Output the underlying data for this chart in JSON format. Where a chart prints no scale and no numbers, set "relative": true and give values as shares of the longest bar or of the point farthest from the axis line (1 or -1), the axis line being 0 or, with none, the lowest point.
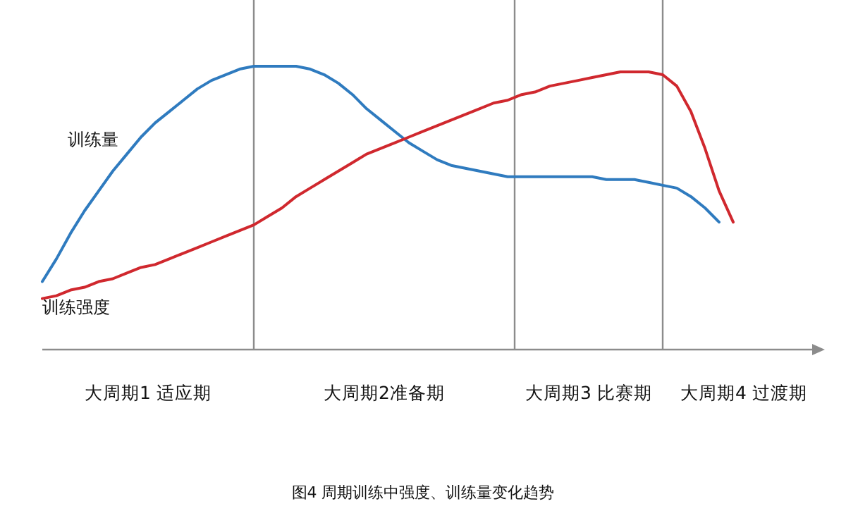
{
  "chart_data": {
    "type": "line",
    "relative": true,
    "title": "图4 周期训练中强度、训练量变化趋势",
    "categories": [
      null,
      null,
      null,
      null,
      null,
      null,
      null,
      null,
      null,
      null,
      null,
      null,
      null,
      null,
      null,
      null,
      null,
      null,
      null,
      null,
      null,
      null,
      null,
      null,
      null,
      null,
      null,
      null,
      null,
      null,
      null,
      null,
      null,
      null,
      null,
      null,
      null,
      null,
      null,
      null,
      null,
      null,
      null,
      null,
      null,
      null,
      null,
      null,
      null,
      null
    ],
    "series": [
      {
        "name": "训练量",
        "color": "#2f7bbf",
        "values": [
          0.24,
          0.32,
          0.41,
          0.49,
          0.56,
          0.63,
          0.69,
          0.75,
          0.8,
          0.84,
          0.88,
          0.92,
          0.95,
          0.97,
          0.99,
          1,
          1,
          1,
          1,
          0.99,
          0.97,
          0.94,
          0.9,
          0.85,
          0.81,
          0.77,
          0.73,
          0.7,
          0.67,
          0.65,
          0.64,
          0.63,
          0.62,
          0.61,
          0.61,
          0.61,
          0.61,
          0.61,
          0.61,
          0.61,
          0.6,
          0.6,
          0.6,
          0.59,
          0.58,
          0.57,
          0.54,
          0.5,
          0.45,
          null
        ]
      },
      {
        "name": "训练强度",
        "color": "#d0282e",
        "values": [
          0.18,
          0.19,
          0.21,
          0.22,
          0.24,
          0.25,
          0.27,
          0.29,
          0.3,
          0.32,
          0.34,
          0.36,
          0.38,
          0.4,
          0.42,
          0.44,
          0.47,
          0.5,
          0.54,
          0.57,
          0.6,
          0.63,
          0.66,
          0.69,
          0.71,
          0.73,
          0.75,
          0.77,
          0.79,
          0.81,
          0.83,
          0.85,
          0.87,
          0.88,
          0.9,
          0.91,
          0.93,
          0.94,
          0.95,
          0.96,
          0.97,
          0.98,
          0.98,
          0.98,
          0.97,
          0.93,
          0.84,
          0.71,
          0.56,
          0.45
        ]
      }
    ],
    "annotations": [
      "大周期1 适应期",
      "大周期2准备期",
      "大周期3 比赛期",
      "大周期4 过渡期"
    ]
  }
}
